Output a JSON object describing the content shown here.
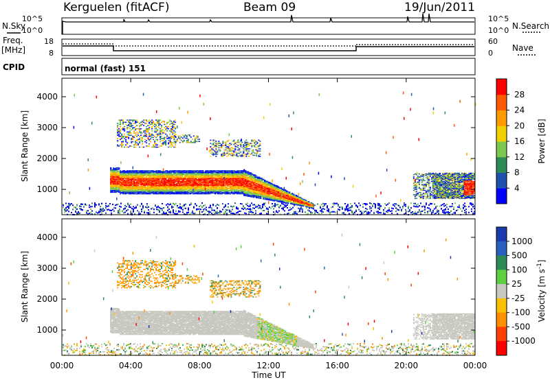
{
  "header": {
    "station": "Kerguelen (fitACF)",
    "beam": "Beam 09",
    "date": "19/Jun/2011"
  },
  "noise_panel": {
    "left_label": "N.Sky",
    "left_ticks": [
      "10^5",
      "10^0"
    ],
    "right_ticks": [
      "10^5",
      "10^0"
    ],
    "right_label": "N.Search"
  },
  "freq_panel": {
    "left_label_line1": "Freq.",
    "left_label_line2": "[MHz]",
    "left_ticks": [
      "18",
      "8"
    ],
    "right_ticks": [
      "60",
      "0"
    ],
    "right_label": "Nave"
  },
  "cpid_panel": {
    "label": "CPID",
    "program": "normal (fast) 151"
  },
  "x_axis": {
    "label": "Time UT",
    "ticks": [
      "00:00",
      "04:00",
      "08:00",
      "12:00",
      "16:00",
      "20:00",
      "00:00"
    ]
  },
  "colors": {
    "power_scale": [
      "#0000ff",
      "#2050b0",
      "#2e8b57",
      "#7cc850",
      "#f0d000",
      "#ff9a00",
      "#ff5a00",
      "#ff0000"
    ],
    "velocity_scale": [
      "#1a3ab0",
      "#2a60c0",
      "#2e8b57",
      "#5cd040",
      "#c8c8c0",
      "#f8c000",
      "#ff9000",
      "#ff4000",
      "#ff0000"
    ]
  },
  "chart_data": [
    {
      "type": "heatmap",
      "title": "Power",
      "xlabel": "Time UT",
      "ylabel": "Slant Range [km]",
      "xlim": [
        0,
        24
      ],
      "ylim": [
        180,
        4600
      ],
      "y_ticks": [
        "1000",
        "2000",
        "3000",
        "4000"
      ],
      "colorbar_label": "Power [dB]",
      "colorbar_ticks": [
        "4",
        "8",
        "12",
        "16",
        "20",
        "24",
        "28"
      ],
      "features": [
        {
          "hours": [
            3.0,
            14.5
          ],
          "range_km": [
            800,
            1600
          ],
          "level": "high"
        },
        {
          "hours": [
            3.0,
            6.5
          ],
          "range_km": [
            2300,
            3200
          ],
          "level": "medium"
        },
        {
          "hours": [
            8.5,
            11.5
          ],
          "range_km": [
            2000,
            2600
          ],
          "level": "medium"
        },
        {
          "hours": [
            20.5,
            24.0
          ],
          "range_km": [
            700,
            1500
          ],
          "level": "medium"
        },
        {
          "hours": [
            0.0,
            24.0
          ],
          "range_km": [
            180,
            600
          ],
          "level": "low"
        }
      ]
    },
    {
      "type": "heatmap",
      "title": "Velocity",
      "xlabel": "Time UT",
      "ylabel": "Slant Range [km]",
      "xlim": [
        0,
        24
      ],
      "ylim": [
        180,
        4600
      ],
      "y_ticks": [
        "1000",
        "2000",
        "3000",
        "4000"
      ],
      "colorbar_label": "Velocity [m s^-1]",
      "colorbar_ticks": [
        "1000",
        "500",
        "100",
        "25",
        "-25",
        "-100",
        "-500",
        "-1000"
      ],
      "features": [
        {
          "hours": [
            2.5,
            14.5
          ],
          "range_km": [
            700,
            1800
          ],
          "level": "near-zero"
        },
        {
          "hours": [
            3.0,
            6.5
          ],
          "range_km": [
            2400,
            3200
          ],
          "level": "negative"
        },
        {
          "hours": [
            8.5,
            11.5
          ],
          "range_km": [
            2000,
            2500
          ],
          "level": "negative"
        },
        {
          "hours": [
            11.5,
            13.5
          ],
          "range_km": [
            500,
            1400
          ],
          "level": "positive"
        },
        {
          "hours": [
            20.5,
            24.0
          ],
          "range_km": [
            700,
            1500
          ],
          "level": "near-zero"
        }
      ]
    }
  ]
}
